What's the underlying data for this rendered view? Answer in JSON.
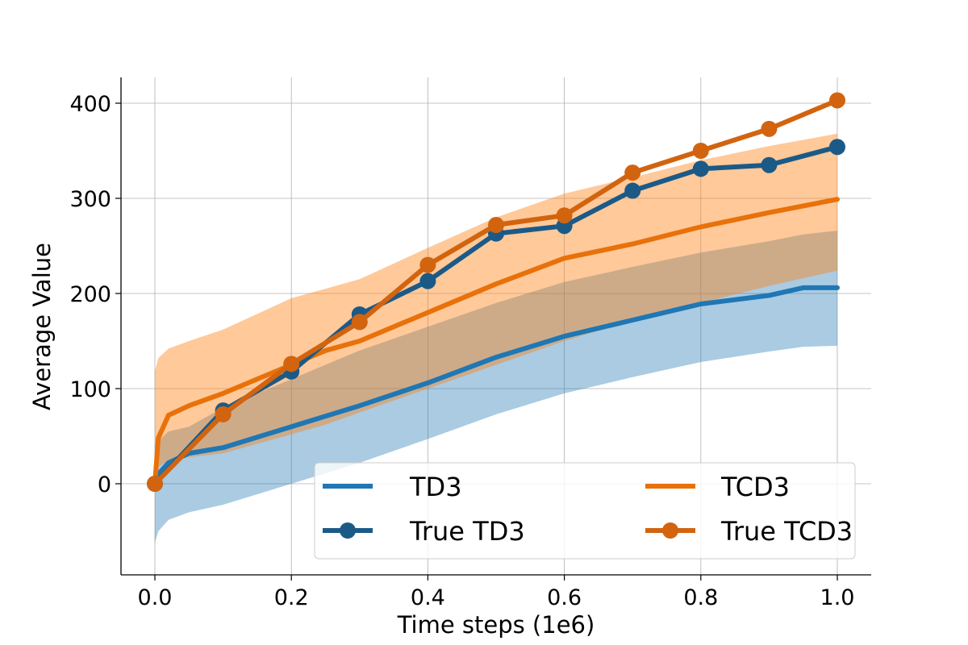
{
  "chart_data": {
    "type": "line",
    "title": "",
    "xlabel": "Time steps (1e6)",
    "ylabel": "Average Value",
    "xlim": [
      -0.05,
      1.05
    ],
    "ylim": [
      -96,
      427
    ],
    "xticks": [
      0.0,
      0.2,
      0.4,
      0.6,
      0.8,
      1.0
    ],
    "xtick_labels": [
      "0.0",
      "0.2",
      "0.4",
      "0.6",
      "0.8",
      "1.0"
    ],
    "yticks": [
      0,
      100,
      200,
      300,
      400
    ],
    "ytick_labels": [
      "0",
      "100",
      "200",
      "300",
      "400"
    ],
    "grid": true,
    "legend_position": "lower-right",
    "legend_columns": 2,
    "series": [
      {
        "name": "TD3",
        "kind": "mean_with_band",
        "color": "#1f77b4",
        "band_color": "#1f77b4",
        "x": [
          0.0,
          0.005,
          0.02,
          0.05,
          0.1,
          0.2,
          0.3,
          0.4,
          0.5,
          0.6,
          0.7,
          0.8,
          0.9,
          0.95,
          1.0
        ],
        "values": [
          0,
          10,
          22,
          32,
          38,
          60,
          82,
          106,
          133,
          155,
          172,
          189,
          198,
          206,
          206
        ],
        "lower": [
          -62,
          -50,
          -38,
          -30,
          -22,
          0,
          22,
          47,
          73,
          95,
          112,
          128,
          139,
          144,
          145
        ],
        "upper": [
          30,
          45,
          55,
          60,
          80,
          110,
          140,
          165,
          190,
          212,
          228,
          243,
          255,
          262,
          266
        ]
      },
      {
        "name": "TCD3",
        "kind": "mean_with_band",
        "color": "#e8710a",
        "band_color": "#ff7f0e",
        "x": [
          0.0,
          0.005,
          0.02,
          0.05,
          0.1,
          0.2,
          0.25,
          0.3,
          0.4,
          0.5,
          0.6,
          0.7,
          0.8,
          0.9,
          1.0
        ],
        "values": [
          0,
          48,
          72,
          82,
          95,
          125,
          140,
          150,
          180,
          210,
          237,
          252,
          270,
          285,
          299
        ],
        "lower": [
          10,
          18,
          24,
          28,
          32,
          52,
          62,
          75,
          100,
          125,
          150,
          172,
          190,
          208,
          224
        ],
        "upper": [
          118,
          132,
          142,
          150,
          162,
          195,
          205,
          215,
          248,
          280,
          305,
          322,
          340,
          355,
          368
        ]
      },
      {
        "name": "True TD3",
        "kind": "line_markers",
        "color": "#1b5a87",
        "x": [
          0.0,
          0.1,
          0.2,
          0.3,
          0.4,
          0.5,
          0.6,
          0.7,
          0.8,
          0.9,
          1.0
        ],
        "values": [
          0,
          77,
          118,
          178,
          213,
          263,
          271,
          308,
          331,
          335,
          354
        ]
      },
      {
        "name": "True TCD3",
        "kind": "line_markers",
        "color": "#d2640f",
        "x": [
          0.0,
          0.1,
          0.2,
          0.3,
          0.4,
          0.5,
          0.6,
          0.7,
          0.8,
          0.9,
          1.0
        ],
        "values": [
          0,
          73,
          126,
          170,
          230,
          272,
          282,
          327,
          350,
          373,
          403
        ]
      }
    ],
    "legend": [
      {
        "label": "TD3",
        "series": "TD3"
      },
      {
        "label": "TCD3",
        "series": "TCD3"
      },
      {
        "label": "True TD3",
        "series": "True TD3"
      },
      {
        "label": "True TCD3",
        "series": "True TCD3"
      }
    ]
  }
}
